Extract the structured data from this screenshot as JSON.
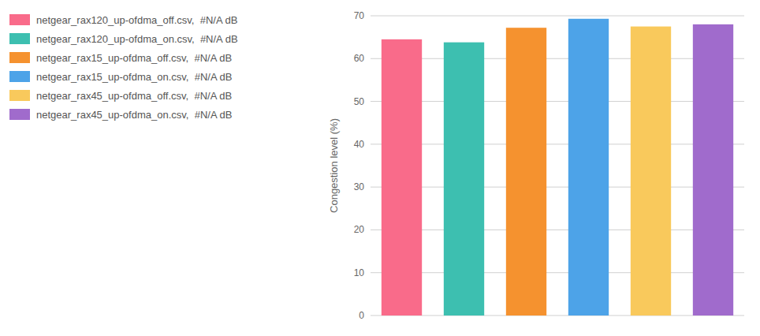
{
  "chart_data": {
    "type": "bar",
    "categories": [
      "netgear_rax120_up-ofdma_off.csv,  #N/A dB",
      "netgear_rax120_up-ofdma_on.csv,  #N/A dB",
      "netgear_rax15_up-ofdma_off.csv,  #N/A dB",
      "netgear_rax15_up-ofdma_on.csv,  #N/A dB",
      "netgear_rax45_up-ofdma_off.csv,  #N/A dB",
      "netgear_rax45_up-ofdma_on.csv,  #N/A dB"
    ],
    "values": [
      64.5,
      63.8,
      67.2,
      69.3,
      67.5,
      68.0
    ],
    "colors": [
      "#F96B8A",
      "#3DBFB0",
      "#F5922F",
      "#4DA3E8",
      "#F9C95C",
      "#A06BCC"
    ],
    "y_label": "Congestion level (%)",
    "ylim": [
      0,
      70
    ],
    "yticks": [
      0,
      10,
      20,
      30,
      40,
      50,
      60,
      70
    ],
    "grid": true,
    "legend": "upper left",
    "tick_labels": "y"
  }
}
